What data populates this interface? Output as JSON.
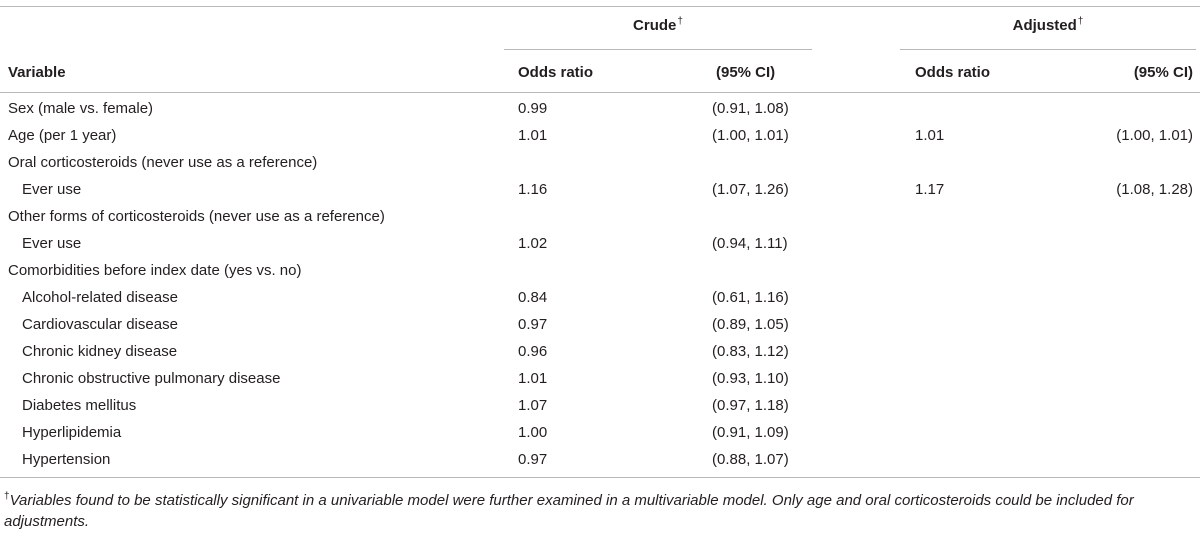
{
  "header": {
    "crude": "Crude",
    "adjusted": "Adjusted",
    "dagger": "†",
    "variable": "Variable",
    "odds_ratio_crude": "Odds ratio",
    "ci_crude": "(95% CI)",
    "odds_ratio_adjusted": "Odds ratio",
    "ci_adjusted": "(95% CI)"
  },
  "rows": [
    {
      "variable": "Sex (male vs. female)",
      "crude_or": "0.99",
      "crude_ci": "(0.91, 1.08)",
      "adj_or": "",
      "adj_ci": ""
    },
    {
      "variable": "Age (per 1 year)",
      "crude_or": "1.01",
      "crude_ci": "(1.00, 1.01)",
      "adj_or": "1.01",
      "adj_ci": "(1.00, 1.01)"
    },
    {
      "variable": "Oral corticosteroids (never use as a reference)",
      "crude_or": "",
      "crude_ci": "",
      "adj_or": "",
      "adj_ci": ""
    },
    {
      "variable": "Ever use",
      "crude_or": "1.16",
      "crude_ci": "(1.07, 1.26)",
      "adj_or": "1.17",
      "adj_ci": "(1.08, 1.28)"
    },
    {
      "variable": "Other forms of corticosteroids (never use as a reference)",
      "crude_or": "",
      "crude_ci": "",
      "adj_or": "",
      "adj_ci": ""
    },
    {
      "variable": "Ever use",
      "crude_or": "1.02",
      "crude_ci": "(0.94, 1.11)",
      "adj_or": "",
      "adj_ci": ""
    },
    {
      "variable": "Comorbidities before index date (yes vs. no)",
      "crude_or": "",
      "crude_ci": "",
      "adj_or": "",
      "adj_ci": ""
    },
    {
      "variable": "Alcohol-related disease",
      "crude_or": "0.84",
      "crude_ci": "(0.61, 1.16)",
      "adj_or": "",
      "adj_ci": ""
    },
    {
      "variable": "Cardiovascular disease",
      "crude_or": "0.97",
      "crude_ci": "(0.89, 1.05)",
      "adj_or": "",
      "adj_ci": ""
    },
    {
      "variable": "Chronic kidney disease",
      "crude_or": "0.96",
      "crude_ci": "(0.83, 1.12)",
      "adj_or": "",
      "adj_ci": ""
    },
    {
      "variable": "Chronic obstructive pulmonary disease",
      "crude_or": "1.01",
      "crude_ci": "(0.93, 1.10)",
      "adj_or": "",
      "adj_ci": ""
    },
    {
      "variable": "Diabetes mellitus",
      "crude_or": "1.07",
      "crude_ci": "(0.97, 1.18)",
      "adj_or": "",
      "adj_ci": ""
    },
    {
      "variable": "Hyperlipidemia",
      "crude_or": "1.00",
      "crude_ci": "(0.91, 1.09)",
      "adj_or": "",
      "adj_ci": ""
    },
    {
      "variable": "Hypertension",
      "crude_or": "0.97",
      "crude_ci": "(0.88, 1.07)",
      "adj_or": "",
      "adj_ci": ""
    }
  ],
  "footnote": {
    "dagger": "†",
    "text": "Variables found to be statistically significant in a univariable model were further examined in a multivariable model. Only age and oral corticosteroids could be included for adjustments."
  }
}
